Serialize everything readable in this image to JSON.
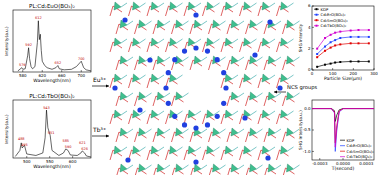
{
  "chart_data": [
    {
      "type": "line",
      "title": "PL:Cd₂EuO(BO₃)₂",
      "x_label": "Wavelength(nm)",
      "y_label": "Intensity(a.u.)",
      "x": [
        570,
        578,
        580,
        585,
        590,
        592,
        594,
        597,
        600,
        605,
        610,
        612,
        614,
        616,
        618,
        620,
        625,
        630,
        640,
        648,
        652,
        655,
        665,
        680,
        690,
        700,
        702,
        705,
        710,
        720
      ],
      "values": [
        2,
        8,
        5,
        6,
        30,
        45,
        25,
        10,
        6,
        10,
        55,
        95,
        60,
        70,
        40,
        20,
        12,
        8,
        5,
        8,
        12,
        6,
        4,
        5,
        10,
        20,
        15,
        8,
        4,
        2
      ],
      "color": "#000000",
      "xlim": [
        560,
        720
      ],
      "xticks": [
        580,
        620,
        660,
        700
      ],
      "ylim": [
        0,
        115
      ],
      "tick_labels": "x",
      "annotations": [
        {
          "text": "579",
          "x": 579,
          "y": 11
        },
        {
          "text": "592",
          "x": 592,
          "y": 48
        },
        {
          "text": "612",
          "x": 612,
          "y": 98
        },
        {
          "text": "652",
          "x": 652,
          "y": 15
        },
        {
          "text": "700",
          "x": 700,
          "y": 23
        }
      ]
    },
    {
      "type": "line",
      "title": "PL:Cd₂TbO(BO₃)₂",
      "x_label": "Wavelength(nm)",
      "y_label": "Intensity(a.u.)",
      "x": [
        475,
        485,
        488,
        490,
        495,
        500,
        520,
        535,
        540,
        543,
        546,
        551,
        555,
        570,
        580,
        585,
        590,
        595,
        610,
        618,
        621,
        626,
        630,
        640
      ],
      "values": [
        3,
        15,
        30,
        20,
        25,
        8,
        5,
        10,
        40,
        95,
        60,
        45,
        15,
        5,
        10,
        18,
        15,
        6,
        5,
        10,
        14,
        10,
        4,
        2
      ],
      "color": "#000000",
      "xlim": [
        470,
        640
      ],
      "xticks": [
        500,
        550,
        600
      ],
      "ylim": [
        0,
        115
      ],
      "tick_labels": "x",
      "annotations": [
        {
          "text": "488",
          "x": 488,
          "y": 36
        },
        {
          "text": "495",
          "x": 495,
          "y": 24
        },
        {
          "text": "543",
          "x": 543,
          "y": 98
        },
        {
          "text": "551",
          "x": 553,
          "y": 48
        },
        {
          "text": "585",
          "x": 585,
          "y": 32
        },
        {
          "text": "590",
          "x": 590,
          "y": 20
        },
        {
          "text": "621",
          "x": 621,
          "y": 28
        },
        {
          "text": "626",
          "x": 626,
          "y": 16
        }
      ]
    },
    {
      "type": "line",
      "x_label": "Particle Size(μm)",
      "y_label": "SHG Intensity",
      "marker": "square",
      "legend": "upper left",
      "x": [
        25,
        63,
        90,
        112,
        137,
        187,
        225,
        275
      ],
      "series": [
        {
          "name": "KDP",
          "color": "#000000",
          "values": [
            0.3,
            0.5,
            0.6,
            0.7,
            0.75,
            0.8,
            0.8,
            0.8
          ]
        },
        {
          "name": "Cd₂ErO(BO₃)₂",
          "color": "#1f3fff",
          "values": [
            1.5,
            2.2,
            2.6,
            2.8,
            3.0,
            3.1,
            3.1,
            3.1
          ]
        },
        {
          "name": "Cd₂SmO(BO₃)₂",
          "color": "#e00000",
          "values": [
            1.2,
            1.8,
            2.1,
            2.3,
            2.4,
            2.5,
            2.5,
            2.5
          ]
        },
        {
          "name": "Cd₂TbO(BO₃)₂",
          "color": "#d000d0",
          "values": [
            2.0,
            3.0,
            3.3,
            3.5,
            3.6,
            3.7,
            3.75,
            3.75
          ]
        }
      ],
      "xlim": [
        0,
        300
      ],
      "xticks": [
        0,
        100,
        200,
        300
      ],
      "ylim": [
        0,
        6
      ],
      "yticks": [
        0,
        2,
        4,
        6
      ]
    },
    {
      "type": "line",
      "x_label": "T(second)",
      "y_label": "SHG Intensity(a.u.)",
      "legend": "lower right",
      "x": [
        -0.0004,
        -0.00015,
        -0.00011,
        -0.0001,
        -8e-05,
        -5e-05,
        0,
        0.0004
      ],
      "series": [
        {
          "name": "KDP",
          "color": "#000000",
          "values": [
            0,
            0,
            -0.05,
            -0.3,
            -0.15,
            -0.03,
            0,
            0
          ]
        },
        {
          "name": "Cd₂ErO(BO₃)₂",
          "color": "#1f3fff",
          "values": [
            0,
            0,
            -0.1,
            -1.0,
            -0.5,
            -0.08,
            0,
            0
          ]
        },
        {
          "name": "Cd₂SmO(BO₃)₂",
          "color": "#e00000",
          "values": [
            0,
            0,
            -0.08,
            -0.8,
            -0.4,
            -0.06,
            0,
            0
          ]
        },
        {
          "name": "Cd₂TbO(BO₃)₂",
          "color": "#d000d0",
          "values": [
            0,
            0,
            -0.09,
            -0.9,
            -0.45,
            -0.07,
            0,
            0
          ]
        }
      ],
      "xlim": [
        -0.0004,
        0.0004
      ],
      "xticks": [
        -0.0003,
        {
          "value": 0,
          "label": "0.0000"
        },
        0.0003
      ],
      "ylim": [
        -1.2,
        0.2
      ],
      "yticks": [
        {
          "value": -1,
          "label": "-1.0"
        },
        {
          "value": -0.5,
          "label": "-0.5"
        },
        {
          "value": 0,
          "label": "0.0"
        }
      ]
    }
  ],
  "structure": {
    "labels": [
      "Eu³⁺",
      "Tb³⁺",
      "NCS groups"
    ]
  }
}
